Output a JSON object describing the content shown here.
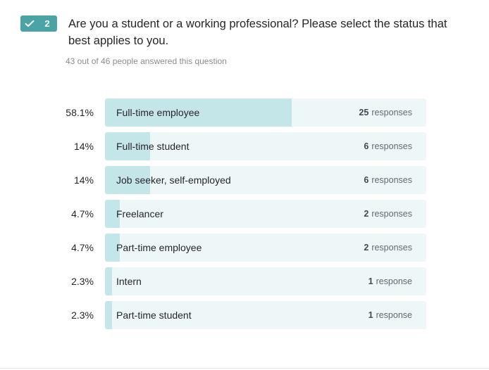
{
  "question": {
    "number": "2",
    "text": "Are you a student or a working professional? Please select the status that best applies to you.",
    "answered_summary": "43 out of 46 people answered this question"
  },
  "colors": {
    "badge": "#4aa3a5",
    "bar_track": "#edf7f8",
    "bar_fill": "#c5e6e8"
  },
  "icons": {
    "badge_icon": "check-icon"
  },
  "chart_data": {
    "type": "bar",
    "orientation": "horizontal",
    "categories": [
      "Full-time employee",
      "Full-time student",
      "Job seeker, self-employed",
      "Freelancer",
      "Part-time employee",
      "Intern",
      "Part-time student"
    ],
    "percent_labels": [
      "58.1%",
      "14%",
      "14%",
      "4.7%",
      "4.7%",
      "2.3%",
      "2.3%"
    ],
    "values": [
      58.1,
      14,
      14,
      4.7,
      4.7,
      2.3,
      2.3
    ],
    "counts": [
      "25",
      "6",
      "6",
      "2",
      "2",
      "1",
      "1"
    ],
    "count_units": [
      "responses",
      "responses",
      "responses",
      "responses",
      "responses",
      "response",
      "response"
    ],
    "xlim": [
      0,
      100
    ]
  }
}
